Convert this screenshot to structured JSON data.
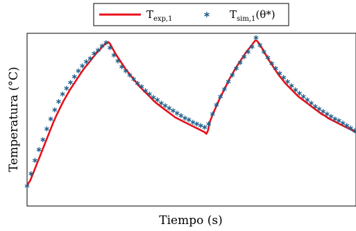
{
  "chart_data": {
    "type": "line",
    "title": "",
    "xlabel": "Tiempo (s)",
    "ylabel": "Temperatura (°C)",
    "xlim": [
      0,
      1
    ],
    "ylim": [
      0,
      1
    ],
    "grid": false,
    "legend_position": "top-center",
    "series": [
      {
        "name_main": "T",
        "name_sub": "exp,1",
        "name": "T_exp,1",
        "style": "line",
        "color": "#e8101a",
        "points": [
          [
            0.0,
            0.1
          ],
          [
            0.01,
            0.13
          ],
          [
            0.02,
            0.18
          ],
          [
            0.03,
            0.23
          ],
          [
            0.04,
            0.28
          ],
          [
            0.05,
            0.33
          ],
          [
            0.06,
            0.38
          ],
          [
            0.07,
            0.43
          ],
          [
            0.08,
            0.48
          ],
          [
            0.09,
            0.525
          ],
          [
            0.1,
            0.565
          ],
          [
            0.11,
            0.605
          ],
          [
            0.12,
            0.64
          ],
          [
            0.13,
            0.675
          ],
          [
            0.14,
            0.705
          ],
          [
            0.15,
            0.735
          ],
          [
            0.16,
            0.765
          ],
          [
            0.17,
            0.795
          ],
          [
            0.18,
            0.82
          ],
          [
            0.19,
            0.845
          ],
          [
            0.2,
            0.87
          ],
          [
            0.21,
            0.895
          ],
          [
            0.22,
            0.915
          ],
          [
            0.23,
            0.94
          ],
          [
            0.24,
            0.955
          ],
          [
            0.246,
            0.965
          ],
          [
            0.252,
            0.955
          ],
          [
            0.26,
            0.925
          ],
          [
            0.27,
            0.89
          ],
          [
            0.28,
            0.86
          ],
          [
            0.29,
            0.83
          ],
          [
            0.3,
            0.8
          ],
          [
            0.31,
            0.775
          ],
          [
            0.32,
            0.75
          ],
          [
            0.33,
            0.725
          ],
          [
            0.34,
            0.7
          ],
          [
            0.35,
            0.68
          ],
          [
            0.36,
            0.66
          ],
          [
            0.37,
            0.64
          ],
          [
            0.38,
            0.62
          ],
          [
            0.39,
            0.6
          ],
          [
            0.4,
            0.585
          ],
          [
            0.41,
            0.57
          ],
          [
            0.42,
            0.555
          ],
          [
            0.43,
            0.54
          ],
          [
            0.44,
            0.525
          ],
          [
            0.45,
            0.51
          ],
          [
            0.46,
            0.5
          ],
          [
            0.47,
            0.49
          ],
          [
            0.48,
            0.48
          ],
          [
            0.49,
            0.47
          ],
          [
            0.5,
            0.46
          ],
          [
            0.51,
            0.45
          ],
          [
            0.52,
            0.44
          ],
          [
            0.53,
            0.43
          ],
          [
            0.54,
            0.42
          ],
          [
            0.545,
            0.41
          ],
          [
            0.55,
            0.43
          ],
          [
            0.555,
            0.48
          ],
          [
            0.565,
            0.53
          ],
          [
            0.575,
            0.575
          ],
          [
            0.585,
            0.62
          ],
          [
            0.595,
            0.66
          ],
          [
            0.605,
            0.7
          ],
          [
            0.615,
            0.74
          ],
          [
            0.625,
            0.775
          ],
          [
            0.635,
            0.81
          ],
          [
            0.645,
            0.84
          ],
          [
            0.655,
            0.87
          ],
          [
            0.665,
            0.9
          ],
          [
            0.675,
            0.925
          ],
          [
            0.685,
            0.95
          ],
          [
            0.69,
            0.965
          ],
          [
            0.695,
            0.975
          ],
          [
            0.7,
            0.97
          ],
          [
            0.705,
            0.955
          ],
          [
            0.715,
            0.925
          ],
          [
            0.725,
            0.89
          ],
          [
            0.735,
            0.855
          ],
          [
            0.745,
            0.825
          ],
          [
            0.755,
            0.795
          ],
          [
            0.765,
            0.765
          ],
          [
            0.775,
            0.74
          ],
          [
            0.785,
            0.715
          ],
          [
            0.795,
            0.695
          ],
          [
            0.805,
            0.675
          ],
          [
            0.815,
            0.655
          ],
          [
            0.825,
            0.635
          ],
          [
            0.835,
            0.62
          ],
          [
            0.845,
            0.605
          ],
          [
            0.855,
            0.59
          ],
          [
            0.865,
            0.575
          ],
          [
            0.875,
            0.56
          ],
          [
            0.885,
            0.545
          ],
          [
            0.895,
            0.53
          ],
          [
            0.905,
            0.52
          ],
          [
            0.915,
            0.505
          ],
          [
            0.925,
            0.495
          ],
          [
            0.935,
            0.485
          ],
          [
            0.945,
            0.475
          ],
          [
            0.955,
            0.465
          ],
          [
            0.965,
            0.455
          ],
          [
            0.975,
            0.445
          ],
          [
            0.985,
            0.435
          ],
          [
            1.0,
            0.42
          ]
        ]
      },
      {
        "name_main": "T",
        "name_sub": "sim,1",
        "name_suffix": "(θ*)",
        "name": "T_sim,1(θ*)",
        "style": "marker",
        "color": "#1f5f8a",
        "points": [
          [
            0.0,
            0.095
          ],
          [
            0.012,
            0.17
          ],
          [
            0.024,
            0.25
          ],
          [
            0.036,
            0.315
          ],
          [
            0.048,
            0.375
          ],
          [
            0.06,
            0.44
          ],
          [
            0.072,
            0.5
          ],
          [
            0.084,
            0.555
          ],
          [
            0.096,
            0.605
          ],
          [
            0.108,
            0.65
          ],
          [
            0.12,
            0.685
          ],
          [
            0.132,
            0.72
          ],
          [
            0.144,
            0.755
          ],
          [
            0.156,
            0.79
          ],
          [
            0.168,
            0.82
          ],
          [
            0.18,
            0.845
          ],
          [
            0.192,
            0.865
          ],
          [
            0.204,
            0.895
          ],
          [
            0.216,
            0.915
          ],
          [
            0.228,
            0.94
          ],
          [
            0.24,
            0.96
          ],
          [
            0.252,
            0.93
          ],
          [
            0.264,
            0.885
          ],
          [
            0.276,
            0.85
          ],
          [
            0.288,
            0.815
          ],
          [
            0.3,
            0.79
          ],
          [
            0.312,
            0.765
          ],
          [
            0.324,
            0.74
          ],
          [
            0.336,
            0.715
          ],
          [
            0.348,
            0.695
          ],
          [
            0.36,
            0.67
          ],
          [
            0.372,
            0.65
          ],
          [
            0.384,
            0.63
          ],
          [
            0.396,
            0.615
          ],
          [
            0.408,
            0.595
          ],
          [
            0.42,
            0.58
          ],
          [
            0.432,
            0.565
          ],
          [
            0.444,
            0.55
          ],
          [
            0.456,
            0.535
          ],
          [
            0.468,
            0.52
          ],
          [
            0.48,
            0.505
          ],
          [
            0.492,
            0.495
          ],
          [
            0.504,
            0.48
          ],
          [
            0.516,
            0.47
          ],
          [
            0.528,
            0.46
          ],
          [
            0.54,
            0.45
          ],
          [
            0.552,
            0.47
          ],
          [
            0.564,
            0.53
          ],
          [
            0.576,
            0.585
          ],
          [
            0.588,
            0.635
          ],
          [
            0.6,
            0.68
          ],
          [
            0.612,
            0.725
          ],
          [
            0.624,
            0.765
          ],
          [
            0.636,
            0.805
          ],
          [
            0.648,
            0.84
          ],
          [
            0.66,
            0.875
          ],
          [
            0.672,
            0.905
          ],
          [
            0.684,
            0.935
          ],
          [
            0.696,
            0.99
          ],
          [
            0.708,
            0.945
          ],
          [
            0.72,
            0.905
          ],
          [
            0.732,
            0.87
          ],
          [
            0.744,
            0.835
          ],
          [
            0.756,
            0.805
          ],
          [
            0.768,
            0.775
          ],
          [
            0.78,
            0.75
          ],
          [
            0.792,
            0.725
          ],
          [
            0.804,
            0.7
          ],
          [
            0.816,
            0.675
          ],
          [
            0.828,
            0.655
          ],
          [
            0.84,
            0.635
          ],
          [
            0.852,
            0.615
          ],
          [
            0.864,
            0.595
          ],
          [
            0.876,
            0.575
          ],
          [
            0.888,
            0.56
          ],
          [
            0.9,
            0.545
          ],
          [
            0.912,
            0.53
          ],
          [
            0.924,
            0.515
          ],
          [
            0.936,
            0.5
          ],
          [
            0.948,
            0.49
          ],
          [
            0.96,
            0.475
          ],
          [
            0.972,
            0.46
          ],
          [
            0.984,
            0.445
          ],
          [
            0.996,
            0.43
          ],
          [
            1.0,
            0.425
          ]
        ]
      }
    ]
  }
}
